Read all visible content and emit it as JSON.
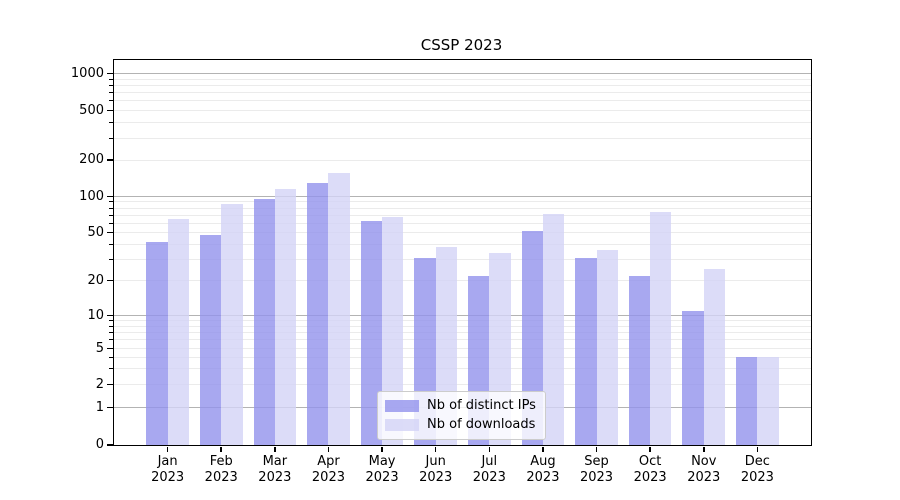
{
  "title": "CSSP 2023",
  "chart_data": {
    "type": "bar",
    "title": "CSSP 2023",
    "yscale": "symlog",
    "ylim": [
      0,
      1300
    ],
    "grid": "major-and-minor",
    "legend_position": "lower center (inside axes)",
    "y_ticks": [
      0,
      1,
      2,
      5,
      10,
      20,
      50,
      100,
      200,
      500,
      1000
    ],
    "months": [
      "Jan",
      "Feb",
      "Mar",
      "Apr",
      "May",
      "Jun",
      "Jul",
      "Aug",
      "Sep",
      "Oct",
      "Nov",
      "Dec"
    ],
    "year_label": "2023",
    "categories": [
      "Jan 2023",
      "Feb 2023",
      "Mar 2023",
      "Apr 2023",
      "May 2023",
      "Jun 2023",
      "Jul 2023",
      "Aug 2023",
      "Sep 2023",
      "Oct 2023",
      "Nov 2023",
      "Dec 2023"
    ],
    "series": [
      {
        "name": "Nb of distinct IPs",
        "color": "#9292ec",
        "alpha": 0.8,
        "values": [
          42,
          48,
          96,
          130,
          63,
          31,
          22,
          51,
          31,
          22,
          11,
          4
        ]
      },
      {
        "name": "Nb of downloads",
        "color": "#d3d3f6",
        "alpha": 0.8,
        "values": [
          65,
          86,
          115,
          155,
          67,
          38,
          34,
          72,
          36,
          74,
          25,
          4
        ]
      }
    ]
  },
  "colors": {
    "major_grid": "#b3b3b3",
    "minor_grid": "#ebebeb",
    "axis": "#000000",
    "legend_border": "#cccccc"
  }
}
